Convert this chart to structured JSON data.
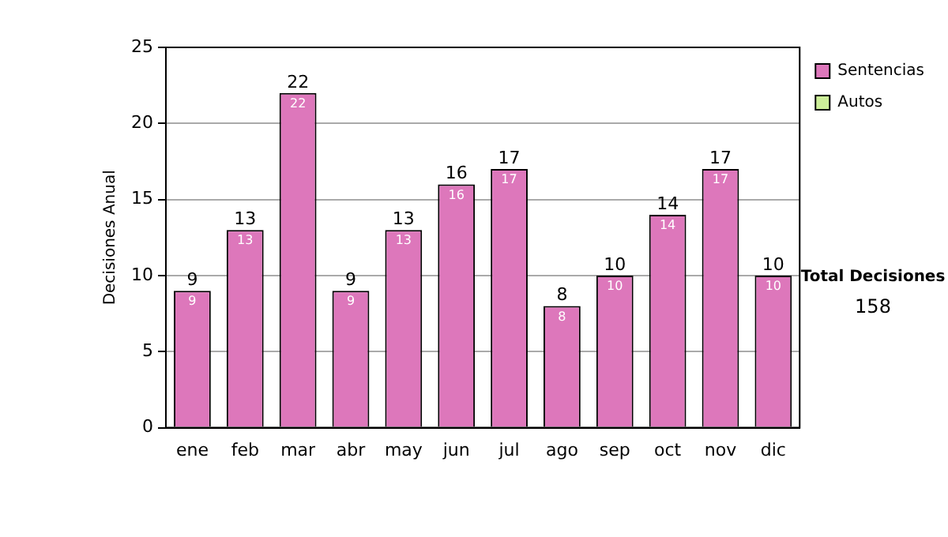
{
  "chart_data": {
    "type": "bar",
    "stacked": true,
    "ylabel": "Decisiones Anual",
    "categories": [
      "ene",
      "feb",
      "mar",
      "abr",
      "may",
      "jun",
      "jul",
      "ago",
      "sep",
      "oct",
      "nov",
      "dic"
    ],
    "series": [
      {
        "name": "Sentencias",
        "color": "#dd77bb",
        "values": [
          9,
          13,
          22,
          9,
          13,
          16,
          17,
          8,
          10,
          14,
          17,
          10
        ],
        "value_labels": [
          "9",
          "13",
          "22",
          "9",
          "13",
          "16",
          "17",
          "8",
          "10",
          "14",
          "17",
          "10"
        ]
      },
      {
        "name": "Autos",
        "color": "#ccee99",
        "values": [
          0,
          0,
          0,
          0,
          0,
          0,
          0,
          0,
          0,
          0,
          0,
          0
        ]
      }
    ],
    "totals": [
      "9",
      "13",
      "22",
      "9",
      "13",
      "16",
      "17",
      "8",
      "10",
      "14",
      "17",
      "10"
    ],
    "ylim": [
      0,
      25
    ],
    "yticks": [
      0,
      5,
      10,
      15,
      20,
      25
    ],
    "grid": "y",
    "legend": "right",
    "annotations": [
      "Total Decisiones",
      "158"
    ]
  }
}
